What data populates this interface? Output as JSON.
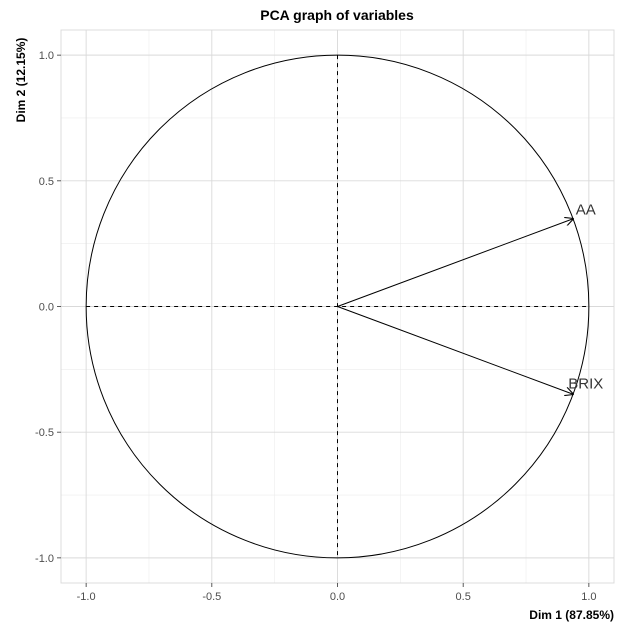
{
  "chart_data": {
    "type": "scatter",
    "title": "PCA graph of variables",
    "xlabel": "Dim 1 (87.85%)",
    "ylabel": "Dim 2 (12.15%)",
    "xlim": [
      -1.1,
      1.1
    ],
    "ylim": [
      -1.1,
      1.1
    ],
    "x_ticks": [
      -1.0,
      -0.5,
      0.0,
      0.5,
      1.0
    ],
    "y_ticks": [
      -1.0,
      -0.5,
      0.0,
      0.5,
      1.0
    ],
    "x_tick_labels": [
      "-1.0",
      "-0.5",
      "0.0",
      "0.5",
      "1.0"
    ],
    "y_tick_labels": [
      "-1.0",
      "-0.5",
      "0.0",
      "0.5",
      "1.0"
    ],
    "grid": true,
    "unit_circle": true,
    "variables": [
      {
        "name": "AA",
        "x": 0.94,
        "y": 0.35
      },
      {
        "name": "BRIX",
        "x": 0.94,
        "y": -0.35
      }
    ]
  },
  "colors": {
    "background": "#ffffff",
    "grid_major": "#d9d9d9",
    "grid_minor": "#ececec",
    "circle": "#000000",
    "arrow": "#000000",
    "zero_line": "#000000",
    "tick_text": "#4d4d4d",
    "label_text": "#333333"
  }
}
